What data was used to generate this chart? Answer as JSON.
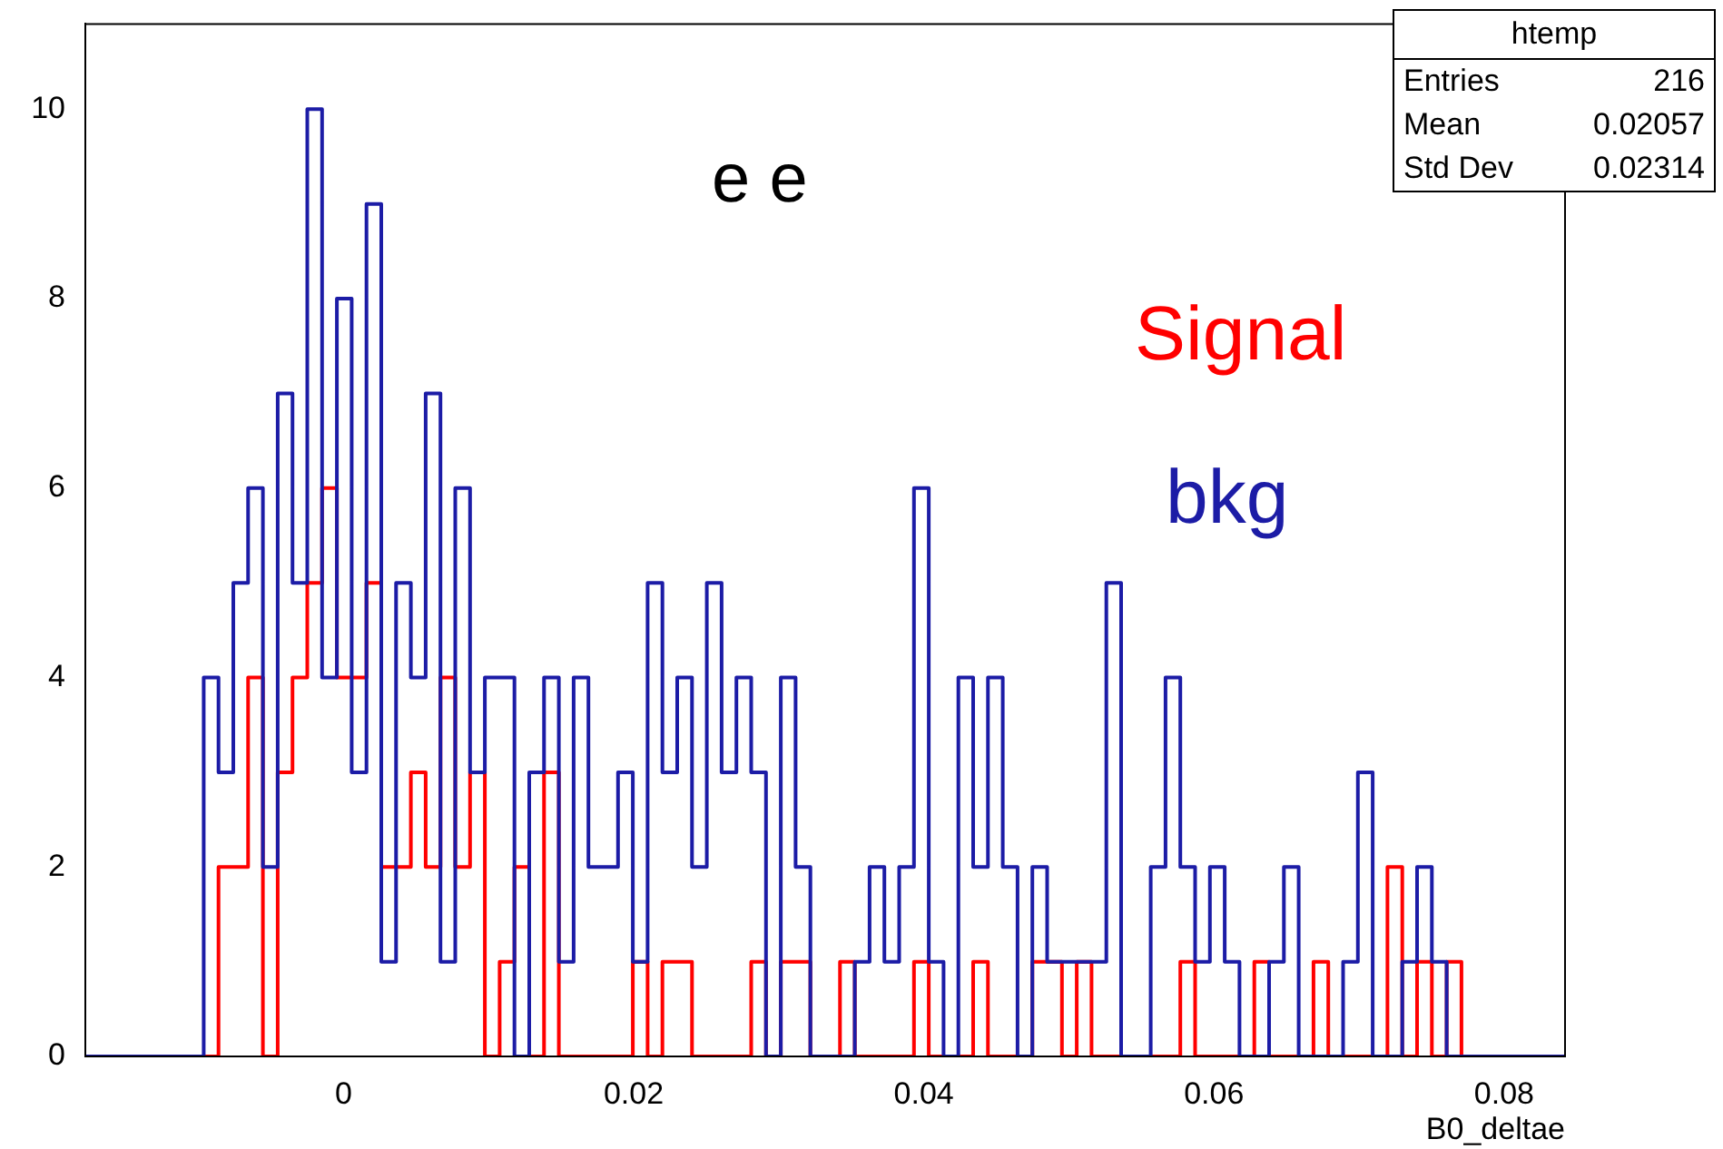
{
  "chart_data": {
    "type": "histogram",
    "xlabel": "B0_deltae",
    "annotations": [
      "e e",
      "htemp",
      "Entries 216",
      "Mean 0.02057",
      "Std Dev 0.02314"
    ],
    "bins": [
      -0.0178,
      -0.01678,
      -0.01576,
      -0.01474,
      -0.01372,
      -0.0127,
      -0.01168,
      -0.01066,
      -0.00964,
      -0.00862,
      -0.0076,
      -0.00658,
      -0.00556,
      -0.00454,
      -0.00352,
      -0.0025,
      -0.00148,
      -0.00046,
      0.00056,
      0.00158,
      0.0026,
      0.00362,
      0.00464,
      0.00566,
      0.00668,
      0.0077,
      0.00872,
      0.00974,
      0.01076,
      0.01178,
      0.0128,
      0.01382,
      0.01484,
      0.01586,
      0.01688,
      0.0179,
      0.01892,
      0.01994,
      0.02096,
      0.02198,
      0.023,
      0.02402,
      0.02504,
      0.02606,
      0.02708,
      0.0281,
      0.02912,
      0.03014,
      0.03116,
      0.03218,
      0.0332,
      0.03422,
      0.03524,
      0.03626,
      0.03728,
      0.0383,
      0.03932,
      0.04034,
      0.04136,
      0.04238,
      0.0434,
      0.04442,
      0.04544,
      0.04646,
      0.04748,
      0.0485,
      0.04952,
      0.05054,
      0.05156,
      0.05258,
      0.0536,
      0.05462,
      0.05564,
      0.05666,
      0.05768,
      0.0587,
      0.05972,
      0.06074,
      0.06176,
      0.06278,
      0.0638,
      0.06482,
      0.06584,
      0.06686,
      0.06788,
      0.0689,
      0.06992,
      0.07094,
      0.07196,
      0.07298,
      0.074,
      0.07502,
      0.07604,
      0.07706,
      0.07808,
      0.0791,
      0.08012,
      0.08114,
      0.08216,
      0.08318,
      0.0842
    ],
    "series": [
      {
        "name": "bkg",
        "color": "#1c1ca6",
        "values": [
          0,
          0,
          0,
          0,
          0,
          0,
          0,
          0,
          4,
          3,
          5,
          6,
          2,
          7,
          5,
          10,
          4,
          8,
          3,
          9,
          1,
          5,
          4,
          7,
          1,
          6,
          3,
          4,
          4,
          0,
          3,
          4,
          1,
          4,
          2,
          2,
          3,
          1,
          5,
          3,
          4,
          2,
          5,
          3,
          4,
          3,
          0,
          4,
          2,
          0,
          0,
          0,
          1,
          2,
          1,
          2,
          6,
          1,
          0,
          4,
          2,
          4,
          2,
          0,
          2,
          1,
          1,
          1,
          1,
          5,
          0,
          0,
          2,
          4,
          2,
          1,
          2,
          1,
          0,
          0,
          1,
          2,
          0,
          0,
          0,
          1,
          3,
          0,
          0,
          1,
          2,
          1,
          0,
          0,
          0,
          0,
          0,
          0,
          0,
          0
        ]
      },
      {
        "name": "Signal",
        "color": "#ff0000",
        "values": [
          0,
          0,
          0,
          0,
          0,
          0,
          0,
          0,
          0,
          2,
          2,
          4,
          0,
          3,
          4,
          5,
          6,
          4,
          4,
          5,
          2,
          2,
          3,
          2,
          4,
          2,
          3,
          0,
          1,
          2,
          0,
          3,
          0,
          0,
          0,
          0,
          0,
          1,
          0,
          1,
          1,
          0,
          0,
          0,
          0,
          1,
          0,
          1,
          1,
          0,
          0,
          1,
          0,
          0,
          0,
          0,
          1,
          0,
          0,
          0,
          1,
          0,
          0,
          0,
          1,
          1,
          0,
          1,
          0,
          0,
          0,
          0,
          0,
          0,
          1,
          0,
          0,
          0,
          0,
          1,
          0,
          0,
          0,
          1,
          0,
          0,
          0,
          0,
          2,
          0,
          1,
          0,
          1,
          0,
          0,
          0,
          0,
          0,
          0,
          0
        ]
      }
    ],
    "xlim": [
      -0.0178,
      0.0842
    ],
    "xticks": [
      0,
      0.02,
      0.04,
      0.06,
      0.08
    ],
    "ylim": [
      0,
      10.9
    ],
    "yticks": [
      0,
      2,
      4,
      6,
      8,
      10
    ],
    "grid": false,
    "legend": false
  }
}
